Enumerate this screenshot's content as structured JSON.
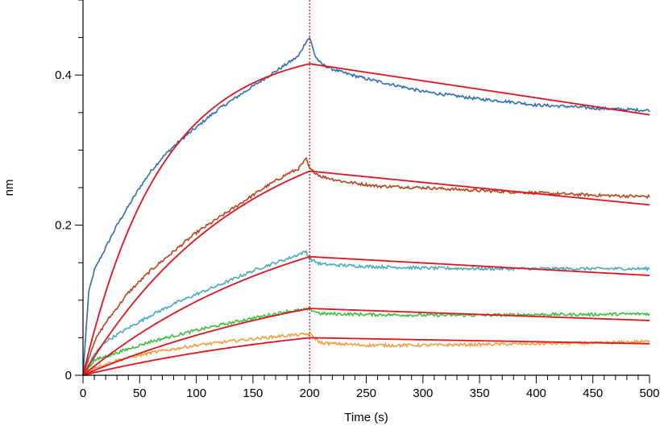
{
  "chart_data": {
    "type": "line",
    "title": "",
    "xlabel": "Time (s)",
    "ylabel": "nm",
    "xlim": [
      0,
      500
    ],
    "ylim": [
      0,
      0.5
    ],
    "x_ticks": [
      0,
      50,
      100,
      150,
      200,
      250,
      300,
      350,
      400,
      450,
      500
    ],
    "y_ticks": [
      0,
      0.2,
      0.4
    ],
    "y_tick_labels": [
      "0",
      "0.2",
      "0.4"
    ],
    "x_minor_step": 10,
    "y_minor_step": 0.05,
    "vertical_marker_x": 200,
    "vertical_marker_color": "#cc0000",
    "fit_color": "#e0141e",
    "grid": false,
    "series": [
      {
        "color": "#2f6db5",
        "assoc_end": 0.45,
        "kobs": 0.0145,
        "diss_end": 0.353,
        "data_x": [
          0,
          5,
          10,
          20,
          30,
          40,
          50,
          60,
          70,
          80,
          90,
          100,
          110,
          120,
          130,
          140,
          150,
          160,
          170,
          180,
          190,
          197,
          200,
          205,
          210,
          220,
          230,
          250,
          280,
          300,
          330,
          350,
          380,
          400,
          430,
          450,
          480,
          500
        ],
        "data_y": [
          0,
          0.11,
          0.14,
          0.17,
          0.2,
          0.225,
          0.25,
          0.272,
          0.29,
          0.305,
          0.318,
          0.33,
          0.343,
          0.355,
          0.365,
          0.375,
          0.385,
          0.395,
          0.405,
          0.415,
          0.425,
          0.445,
          0.45,
          0.425,
          0.415,
          0.408,
          0.403,
          0.395,
          0.385,
          0.378,
          0.372,
          0.368,
          0.364,
          0.36,
          0.358,
          0.356,
          0.354,
          0.353
        ],
        "fit_x": [
          0,
          200,
          500
        ],
        "fit_y": [
          0,
          0.415,
          0.347
        ]
      },
      {
        "color": "#b5451b",
        "assoc_end": 0.288,
        "kobs": 0.007,
        "diss_end": 0.238,
        "data_x": [
          0,
          10,
          20,
          40,
          60,
          80,
          100,
          120,
          140,
          160,
          180,
          190,
          197,
          200,
          210,
          230,
          260,
          300,
          350,
          400,
          450,
          500
        ],
        "data_y": [
          0,
          0.045,
          0.07,
          0.11,
          0.14,
          0.165,
          0.19,
          0.21,
          0.23,
          0.25,
          0.268,
          0.275,
          0.288,
          0.275,
          0.265,
          0.258,
          0.252,
          0.25,
          0.246,
          0.243,
          0.24,
          0.238
        ],
        "fit_x": [
          0,
          200,
          500
        ],
        "fit_y": [
          0,
          0.272,
          0.227
        ]
      },
      {
        "color": "#4aabbf",
        "assoc_end": 0.165,
        "kobs": 0.005,
        "diss_end": 0.142,
        "data_x": [
          0,
          10,
          20,
          40,
          60,
          80,
          100,
          120,
          140,
          160,
          180,
          197,
          200,
          210,
          250,
          300,
          350,
          400,
          450,
          500
        ],
        "data_y": [
          0,
          0.028,
          0.045,
          0.063,
          0.08,
          0.095,
          0.108,
          0.12,
          0.133,
          0.145,
          0.155,
          0.165,
          0.155,
          0.148,
          0.145,
          0.143,
          0.142,
          0.142,
          0.142,
          0.142
        ],
        "fit_x": [
          0,
          200,
          500
        ],
        "fit_y": [
          0,
          0.158,
          0.133
        ]
      },
      {
        "color": "#3cbf3c",
        "assoc_end": 0.088,
        "kobs": 0.004,
        "diss_end": 0.082,
        "data_x": [
          0,
          10,
          30,
          60,
          100,
          140,
          180,
          200,
          210,
          250,
          300,
          350,
          400,
          450,
          500
        ],
        "data_y": [
          0,
          0.02,
          0.03,
          0.045,
          0.06,
          0.073,
          0.085,
          0.088,
          0.082,
          0.081,
          0.08,
          0.08,
          0.081,
          0.081,
          0.082
        ],
        "fit_x": [
          0,
          200,
          500
        ],
        "fit_y": [
          0,
          0.089,
          0.073
        ]
      },
      {
        "color": "#f0a040",
        "assoc_end": 0.055,
        "kobs": 0.004,
        "diss_end": 0.045,
        "data_x": [
          0,
          10,
          30,
          60,
          100,
          140,
          180,
          200,
          210,
          250,
          300,
          350,
          400,
          450,
          500
        ],
        "data_y": [
          0,
          0.01,
          0.02,
          0.03,
          0.04,
          0.047,
          0.053,
          0.055,
          0.043,
          0.04,
          0.04,
          0.041,
          0.042,
          0.043,
          0.045
        ],
        "fit_x": [
          0,
          200,
          500
        ],
        "fit_y": [
          0,
          0.05,
          0.042
        ]
      }
    ]
  }
}
